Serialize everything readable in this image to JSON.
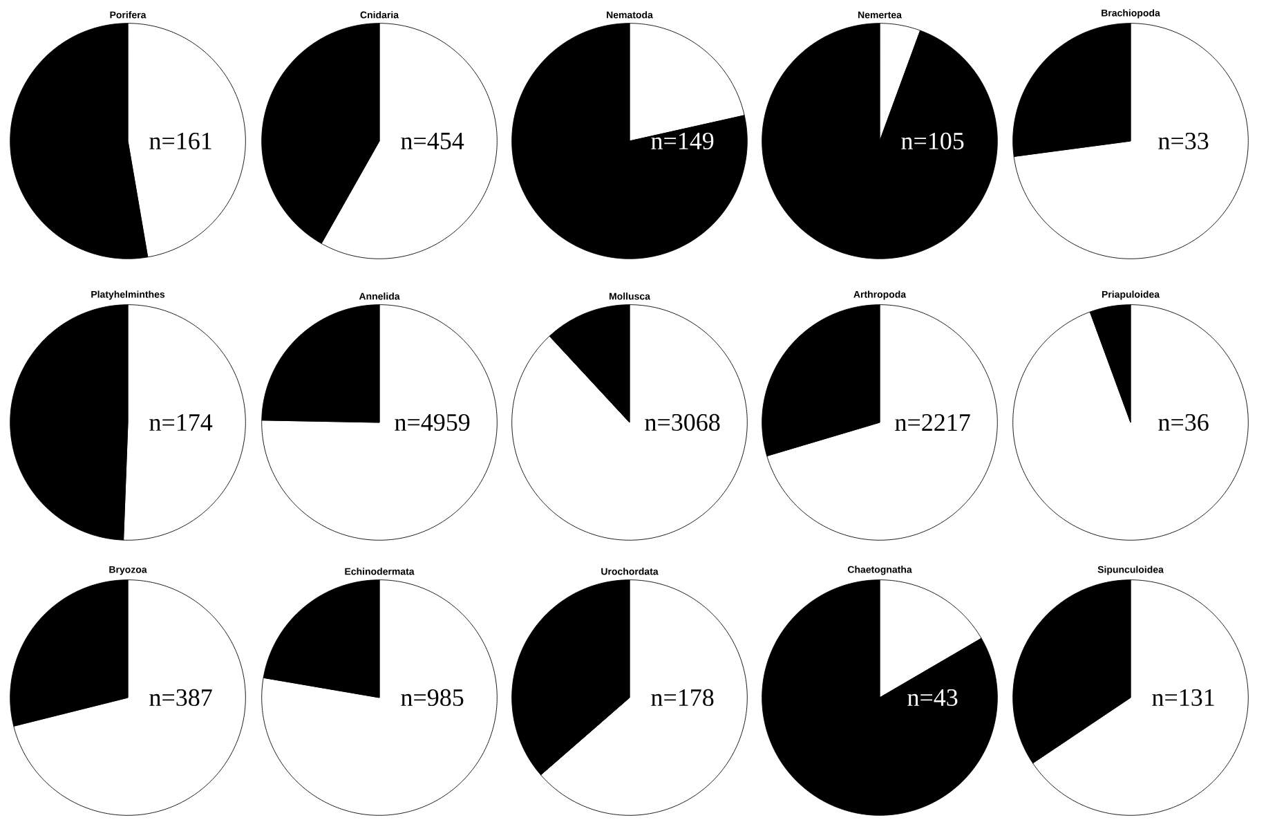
{
  "chart_data": [
    {
      "type": "pie",
      "title": "Porifera",
      "categories": [
        null,
        null
      ],
      "values": [
        47.3,
        52.7
      ],
      "colors": [
        "#ffffff",
        "#000000"
      ],
      "annotations": [
        "n=161"
      ]
    },
    {
      "type": "pie",
      "title": "Cnidaria",
      "categories": [
        null,
        null
      ],
      "values": [
        58.2,
        41.8
      ],
      "colors": [
        "#ffffff",
        "#000000"
      ],
      "annotations": [
        "n=454"
      ]
    },
    {
      "type": "pie",
      "title": "Nematoda",
      "categories": [
        null,
        null
      ],
      "values": [
        21.5,
        78.5
      ],
      "colors": [
        "#ffffff",
        "#000000"
      ],
      "annotations": [
        "n=149"
      ]
    },
    {
      "type": "pie",
      "title": "Nemertea",
      "categories": [
        null,
        null
      ],
      "values": [
        5.6,
        94.4
      ],
      "colors": [
        "#ffffff",
        "#000000"
      ],
      "annotations": [
        "n=105"
      ]
    },
    {
      "type": "pie",
      "title": "Brachiopoda",
      "categories": [
        null,
        null
      ],
      "values": [
        72.9,
        27.1
      ],
      "colors": [
        "#ffffff",
        "#000000"
      ],
      "annotations": [
        "n=33"
      ]
    },
    {
      "type": "pie",
      "title": "Platyhelminthes",
      "categories": [
        null,
        null
      ],
      "values": [
        50.6,
        49.4
      ],
      "colors": [
        "#ffffff",
        "#000000"
      ],
      "annotations": [
        "n=174"
      ]
    },
    {
      "type": "pie",
      "title": "Annelida",
      "categories": [
        null,
        null
      ],
      "values": [
        75.3,
        24.7
      ],
      "colors": [
        "#ffffff",
        "#000000"
      ],
      "annotations": [
        "n=4959"
      ]
    },
    {
      "type": "pie",
      "title": "Mollusca",
      "categories": [
        null,
        null
      ],
      "values": [
        88.1,
        11.9
      ],
      "colors": [
        "#ffffff",
        "#000000"
      ],
      "annotations": [
        "n=3068"
      ]
    },
    {
      "type": "pie",
      "title": "Arthropoda",
      "categories": [
        null,
        null
      ],
      "values": [
        70.4,
        29.6
      ],
      "colors": [
        "#ffffff",
        "#000000"
      ],
      "annotations": [
        "n=2217"
      ]
    },
    {
      "type": "pie",
      "title": "Priapuloidea",
      "categories": [
        null,
        null
      ],
      "values": [
        94.4,
        5.6
      ],
      "colors": [
        "#ffffff",
        "#000000"
      ],
      "annotations": [
        "n=36"
      ]
    },
    {
      "type": "pie",
      "title": "Bryozoa",
      "categories": [
        null,
        null
      ],
      "values": [
        71.1,
        28.9
      ],
      "colors": [
        "#ffffff",
        "#000000"
      ],
      "annotations": [
        "n=387"
      ]
    },
    {
      "type": "pie",
      "title": "Echinodermata",
      "categories": [
        null,
        null
      ],
      "values": [
        77.7,
        22.3
      ],
      "colors": [
        "#ffffff",
        "#000000"
      ],
      "annotations": [
        "n=985"
      ]
    },
    {
      "type": "pie",
      "title": "Urochordata",
      "categories": [
        null,
        null
      ],
      "values": [
        63.6,
        36.4
      ],
      "colors": [
        "#ffffff",
        "#000000"
      ],
      "annotations": [
        "n=178"
      ]
    },
    {
      "type": "pie",
      "title": "Chaetognatha",
      "categories": [
        null,
        null
      ],
      "values": [
        16.6,
        83.4
      ],
      "colors": [
        "#ffffff",
        "#000000"
      ],
      "annotations": [
        "n=43"
      ]
    },
    {
      "type": "pie",
      "title": "Sipunculoidea",
      "categories": [
        null,
        null
      ],
      "values": [
        65.6,
        34.4
      ],
      "colors": [
        "#ffffff",
        "#000000"
      ],
      "annotations": [
        "n=131"
      ]
    }
  ]
}
